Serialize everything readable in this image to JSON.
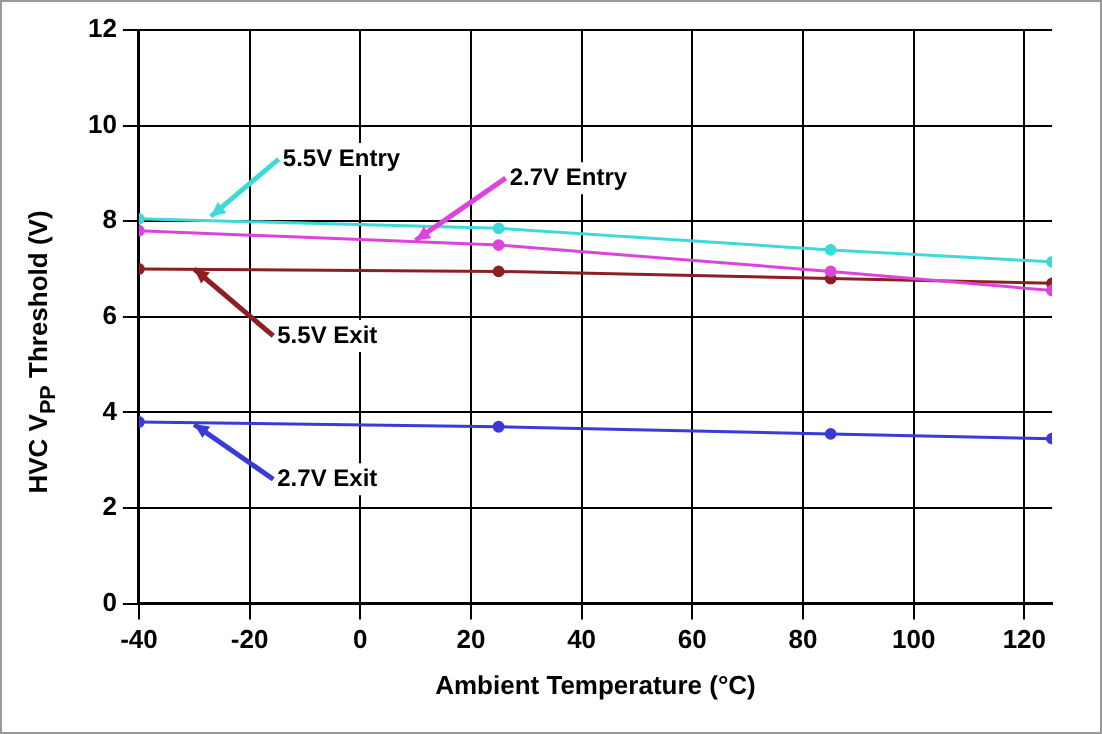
{
  "chart_data": {
    "type": "line",
    "xlabel": "Ambient Temperature (°C)",
    "ylabel": "HVC V$_{PP}$ Threshold (V)",
    "x": [
      -40,
      25,
      85,
      125
    ],
    "series": [
      {
        "name": "5.5V Entry",
        "color": "#3fd9d9",
        "values": [
          8.05,
          7.85,
          7.4,
          7.15
        ]
      },
      {
        "name": "2.7V Entry",
        "color": "#dd44dd",
        "values": [
          7.8,
          7.5,
          6.95,
          6.55
        ]
      },
      {
        "name": "5.5V Exit",
        "color": "#8b1f24",
        "values": [
          7.0,
          6.95,
          6.8,
          6.7
        ]
      },
      {
        "name": "2.7V Exit",
        "color": "#3a3ad8",
        "values": [
          3.8,
          3.7,
          3.55,
          3.45
        ]
      }
    ],
    "xlim": [
      -40,
      125
    ],
    "xticks": [
      -40,
      -20,
      0,
      20,
      40,
      60,
      80,
      100,
      120
    ],
    "ylim": [
      0,
      12
    ],
    "yticks": [
      0,
      2,
      4,
      6,
      8,
      10,
      12
    ],
    "grid": true,
    "legend": false,
    "marker": "circle",
    "line_style": "solid"
  }
}
